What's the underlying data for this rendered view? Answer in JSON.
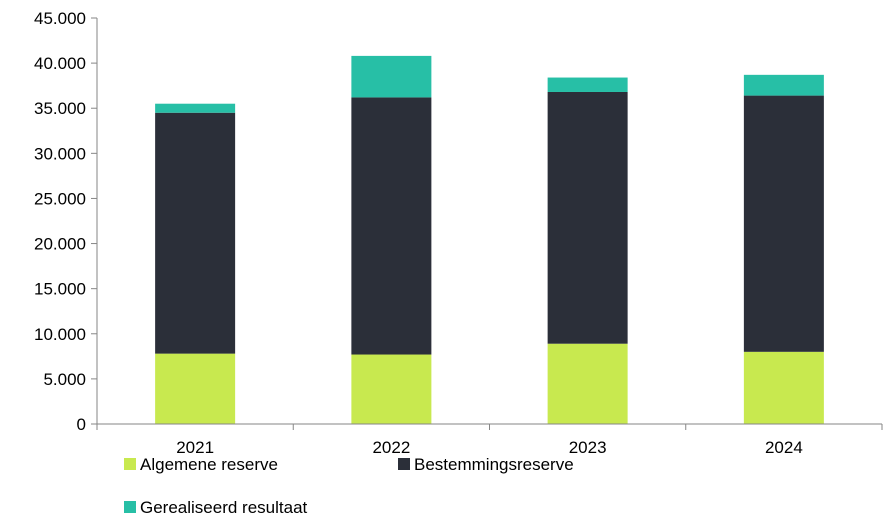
{
  "chart_data": {
    "type": "bar",
    "stacked": true,
    "title": "",
    "xlabel": "",
    "ylabel": "",
    "categories": [
      "2021",
      "2022",
      "2023",
      "2024"
    ],
    "ylim": [
      0,
      45000
    ],
    "yticks": [
      0,
      5000,
      10000,
      15000,
      20000,
      25000,
      30000,
      35000,
      40000,
      45000
    ],
    "ytick_labels": [
      "0",
      "5.000",
      "10.000",
      "15.000",
      "20.000",
      "25.000",
      "30.000",
      "35.000",
      "40.000",
      "45.000"
    ],
    "grid": false,
    "legend_position": "bottom",
    "series": [
      {
        "name": "Algemene reserve",
        "color": "#c8e94f",
        "values": [
          7800,
          7700,
          8900,
          8000
        ]
      },
      {
        "name": "Bestemmingsreserve",
        "color": "#2b2f39",
        "values": [
          26700,
          28500,
          27900,
          28400
        ]
      },
      {
        "name": "Gerealiseerd resultaat",
        "color": "#27bfa6",
        "values": [
          1000,
          4600,
          1600,
          2300
        ]
      }
    ]
  }
}
